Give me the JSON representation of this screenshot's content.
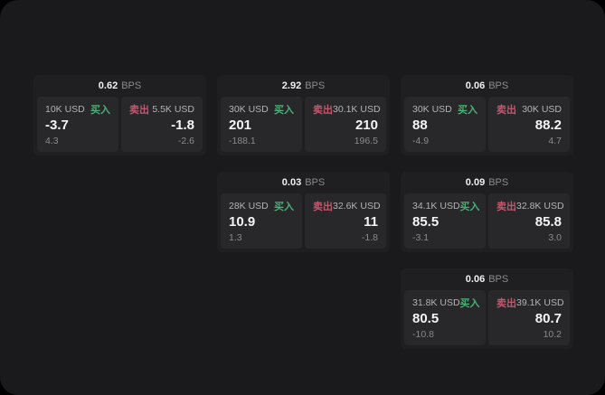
{
  "page": {
    "bps_unit": "BPS",
    "buy_label": "买入",
    "sell_label": "卖出"
  },
  "colors": {
    "buy": "#4caf77",
    "sell": "#c4566e",
    "surface": "#1a1a1c",
    "card": "#1f1f21",
    "panel": "#28282b",
    "value_text": "#f5f5f5",
    "muted_text": "#8a8a8c"
  },
  "cards": [
    {
      "bps": "0.62",
      "buy": {
        "amount": "10K USD",
        "value": "-3.7",
        "sub": "4.3"
      },
      "sell": {
        "amount": "5.5K USD",
        "value": "-1.8",
        "sub": "-2.6"
      }
    },
    {
      "bps": "2.92",
      "buy": {
        "amount": "30K USD",
        "value": "201",
        "sub": "-188.1"
      },
      "sell": {
        "amount": "30.1K USD",
        "value": "210",
        "sub": "196.5"
      }
    },
    {
      "bps": "0.06",
      "buy": {
        "amount": "30K USD",
        "value": "88",
        "sub": "-4.9"
      },
      "sell": {
        "amount": "30K USD",
        "value": "88.2",
        "sub": "4.7"
      }
    },
    {
      "bps": "0.03",
      "buy": {
        "amount": "28K USD",
        "value": "10.9",
        "sub": "1.3"
      },
      "sell": {
        "amount": "32.6K USD",
        "value": "11",
        "sub": "-1.8"
      }
    },
    {
      "bps": "0.09",
      "buy": {
        "amount": "34.1K USD",
        "value": "85.5",
        "sub": "-3.1"
      },
      "sell": {
        "amount": "32.8K USD",
        "value": "85.8",
        "sub": "3.0"
      }
    },
    {
      "bps": "0.06",
      "buy": {
        "amount": "31.8K USD",
        "value": "80.5",
        "sub": "-10.8"
      },
      "sell": {
        "amount": "39.1K USD",
        "value": "80.7",
        "sub": "10.2"
      }
    }
  ]
}
